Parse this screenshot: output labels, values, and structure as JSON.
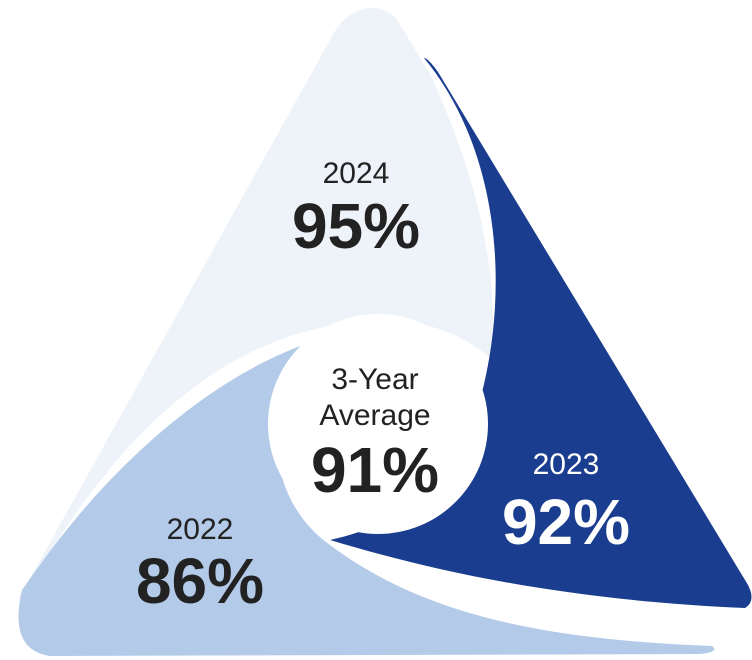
{
  "title": "3-Year Average",
  "colors": {
    "segment_2024": "#eef3fa",
    "segment_2023": "#1a3d8f",
    "segment_2022": "#b3cbe8",
    "text_dark": "#222222",
    "text_light": "#ffffff",
    "center_fill": "#ffffff"
  },
  "segments": [
    {
      "year": "2024",
      "percent": "95%"
    },
    {
      "year": "2023",
      "percent": "92%"
    },
    {
      "year": "2022",
      "percent": "86%"
    }
  ],
  "center": {
    "line1": "3-Year",
    "line2": "Average",
    "percent": "91%"
  }
}
